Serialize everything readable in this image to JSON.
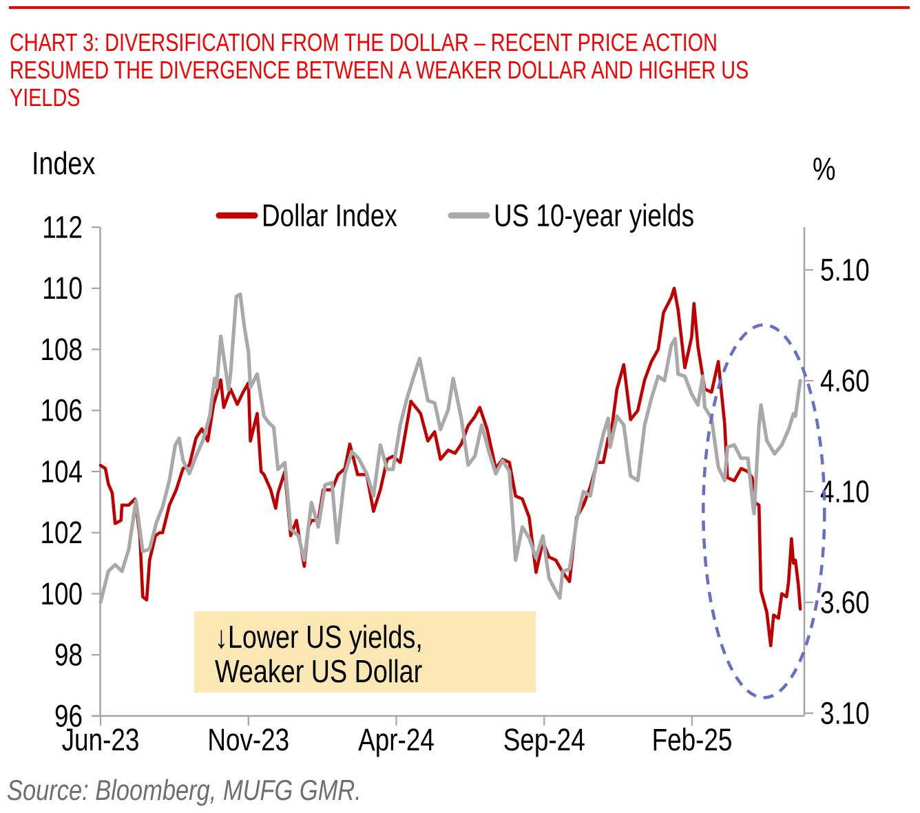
{
  "header": {
    "rule_color": "#F40000",
    "title_color": "#F40000",
    "title_lines": [
      "CHART 3: DIVERSIFICATION FROM THE DOLLAR – RECENT PRICE ACTION",
      "RESUMED THE DIVERGENCE BETWEEN A WEAKER DOLLAR AND HIGHER US",
      "YIELDS"
    ]
  },
  "chart": {
    "left_axis_title": "Index",
    "right_axis_title": "%",
    "legend": [
      {
        "label": "Dollar Index",
        "color": "#C00000"
      },
      {
        "label": "US 10-year yields",
        "color": "#A9A9A9"
      }
    ],
    "annotation_box": {
      "line1": "↓Lower US yields,",
      "line2": "Weaker US Dollar",
      "bg_color": "#FAE7B3"
    }
  },
  "source": {
    "text": "Source: Bloomberg, MUFG GMR."
  },
  "chart_data": {
    "type": "line",
    "title": "CHART 3: Diversification from the dollar – recent price action resumed the divergence between a weaker dollar and higher US yields",
    "grid": false,
    "legend_position": "top",
    "left_axis": {
      "label": "Index",
      "range": [
        96,
        112
      ],
      "ticks": [
        112,
        110,
        108,
        106,
        104,
        102,
        100,
        98,
        96
      ]
    },
    "right_axis": {
      "label": "%",
      "ticks": [
        5.1,
        4.6,
        4.1,
        3.6,
        3.1
      ]
    },
    "x_axis": {
      "tick_labels": [
        "Jun-23",
        "Nov-23",
        "Apr-24",
        "Sep-24",
        "Feb-25"
      ],
      "tick_month_offsets": [
        0,
        5,
        10,
        15,
        20
      ],
      "start_date": "2023-06-01",
      "end_date": "2025-05-21"
    },
    "series": [
      {
        "name": "Dollar Index",
        "axis": "left",
        "color": "#C00000",
        "stroke_width": 4.6,
        "points": [
          [
            "2023-06-01",
            104.2
          ],
          [
            "2023-06-06",
            104.1
          ],
          [
            "2023-06-09",
            103.6
          ],
          [
            "2023-06-13",
            103.3
          ],
          [
            "2023-06-16",
            102.3
          ],
          [
            "2023-06-22",
            102.4
          ],
          [
            "2023-06-23",
            102.9
          ],
          [
            "2023-06-30",
            102.9
          ],
          [
            "2023-07-06",
            103.1
          ],
          [
            "2023-07-11",
            101.9
          ],
          [
            "2023-07-14",
            99.9
          ],
          [
            "2023-07-18",
            99.8
          ],
          [
            "2023-07-21",
            101.1
          ],
          [
            "2023-07-27",
            101.9
          ],
          [
            "2023-08-01",
            102.0
          ],
          [
            "2023-08-04",
            102.0
          ],
          [
            "2023-08-11",
            102.9
          ],
          [
            "2023-08-18",
            103.4
          ],
          [
            "2023-08-25",
            104.1
          ],
          [
            "2023-09-01",
            104.2
          ],
          [
            "2023-09-08",
            105.1
          ],
          [
            "2023-09-14",
            105.4
          ],
          [
            "2023-09-20",
            105.0
          ],
          [
            "2023-09-26",
            106.2
          ],
          [
            "2023-10-03",
            107.0
          ],
          [
            "2023-10-06",
            106.1
          ],
          [
            "2023-10-13",
            106.7
          ],
          [
            "2023-10-20",
            106.2
          ],
          [
            "2023-10-26",
            106.6
          ],
          [
            "2023-11-01",
            106.9
          ],
          [
            "2023-11-03",
            105.0
          ],
          [
            "2023-11-10",
            105.9
          ],
          [
            "2023-11-14",
            104.0
          ],
          [
            "2023-11-17",
            103.9
          ],
          [
            "2023-11-24",
            103.4
          ],
          [
            "2023-11-29",
            102.8
          ],
          [
            "2023-12-01",
            103.3
          ],
          [
            "2023-12-08",
            104.0
          ],
          [
            "2023-12-14",
            101.9
          ],
          [
            "2023-12-20",
            102.4
          ],
          [
            "2023-12-28",
            100.9
          ],
          [
            "2024-01-02",
            102.2
          ],
          [
            "2024-01-05",
            102.4
          ],
          [
            "2024-01-12",
            102.4
          ],
          [
            "2024-01-17",
            103.4
          ],
          [
            "2024-01-26",
            103.4
          ],
          [
            "2024-02-02",
            103.9
          ],
          [
            "2024-02-09",
            104.1
          ],
          [
            "2024-02-14",
            104.9
          ],
          [
            "2024-02-22",
            103.9
          ],
          [
            "2024-03-01",
            103.9
          ],
          [
            "2024-03-08",
            102.7
          ],
          [
            "2024-03-15",
            103.4
          ],
          [
            "2024-03-22",
            104.4
          ],
          [
            "2024-03-28",
            104.5
          ],
          [
            "2024-04-05",
            104.3
          ],
          [
            "2024-04-10",
            105.2
          ],
          [
            "2024-04-16",
            106.3
          ],
          [
            "2024-04-26",
            105.9
          ],
          [
            "2024-05-03",
            105.0
          ],
          [
            "2024-05-10",
            105.3
          ],
          [
            "2024-05-16",
            104.4
          ],
          [
            "2024-05-24",
            104.7
          ],
          [
            "2024-05-31",
            104.6
          ],
          [
            "2024-06-07",
            104.9
          ],
          [
            "2024-06-14",
            105.5
          ],
          [
            "2024-06-21",
            105.8
          ],
          [
            "2024-06-26",
            106.1
          ],
          [
            "2024-07-03",
            105.4
          ],
          [
            "2024-07-12",
            104.1
          ],
          [
            "2024-07-19",
            104.4
          ],
          [
            "2024-07-26",
            104.3
          ],
          [
            "2024-08-02",
            103.2
          ],
          [
            "2024-08-09",
            103.1
          ],
          [
            "2024-08-16",
            102.5
          ],
          [
            "2024-08-23",
            100.7
          ],
          [
            "2024-08-30",
            101.7
          ],
          [
            "2024-09-06",
            101.2
          ],
          [
            "2024-09-13",
            101.1
          ],
          [
            "2024-09-20",
            100.7
          ],
          [
            "2024-09-27",
            100.4
          ],
          [
            "2024-10-04",
            102.5
          ],
          [
            "2024-10-11",
            102.9
          ],
          [
            "2024-10-18",
            103.5
          ],
          [
            "2024-10-25",
            104.3
          ],
          [
            "2024-11-01",
            104.3
          ],
          [
            "2024-11-06",
            105.1
          ],
          [
            "2024-11-08",
            105.0
          ],
          [
            "2024-11-15",
            106.7
          ],
          [
            "2024-11-22",
            107.5
          ],
          [
            "2024-11-29",
            105.7
          ],
          [
            "2024-12-06",
            106.0
          ],
          [
            "2024-12-13",
            107.0
          ],
          [
            "2024-12-20",
            107.6
          ],
          [
            "2024-12-27",
            108.0
          ],
          [
            "2025-01-02",
            109.2
          ],
          [
            "2025-01-10",
            109.7
          ],
          [
            "2025-01-13",
            110.0
          ],
          [
            "2025-01-17",
            109.3
          ],
          [
            "2025-01-24",
            107.4
          ],
          [
            "2025-01-31",
            108.4
          ],
          [
            "2025-02-03",
            109.5
          ],
          [
            "2025-02-07",
            108.1
          ],
          [
            "2025-02-14",
            106.7
          ],
          [
            "2025-02-21",
            106.6
          ],
          [
            "2025-02-28",
            107.6
          ],
          [
            "2025-03-04",
            105.6
          ],
          [
            "2025-03-07",
            103.8
          ],
          [
            "2025-03-14",
            103.7
          ],
          [
            "2025-03-21",
            104.1
          ],
          [
            "2025-03-28",
            104.0
          ],
          [
            "2025-04-02",
            103.8
          ],
          [
            "2025-04-04",
            103.0
          ],
          [
            "2025-04-09",
            102.9
          ],
          [
            "2025-04-11",
            100.1
          ],
          [
            "2025-04-17",
            99.4
          ],
          [
            "2025-04-21",
            98.3
          ],
          [
            "2025-04-24",
            99.3
          ],
          [
            "2025-04-29",
            99.2
          ],
          [
            "2025-05-02",
            100.0
          ],
          [
            "2025-05-07",
            99.9
          ],
          [
            "2025-05-09",
            100.4
          ],
          [
            "2025-05-12",
            101.8
          ],
          [
            "2025-05-14",
            101.0
          ],
          [
            "2025-05-16",
            101.1
          ],
          [
            "2025-05-19",
            100.3
          ],
          [
            "2025-05-21",
            99.5
          ]
        ]
      },
      {
        "name": "US 10-year yields",
        "axis": "right",
        "color": "#A9A9A9",
        "stroke_width": 5.2,
        "points": [
          [
            "2023-06-01",
            3.6
          ],
          [
            "2023-06-09",
            3.74
          ],
          [
            "2023-06-16",
            3.77
          ],
          [
            "2023-06-23",
            3.74
          ],
          [
            "2023-06-30",
            3.84
          ],
          [
            "2023-07-07",
            4.06
          ],
          [
            "2023-07-14",
            3.83
          ],
          [
            "2023-07-21",
            3.84
          ],
          [
            "2023-07-28",
            3.96
          ],
          [
            "2023-08-04",
            4.03
          ],
          [
            "2023-08-11",
            4.15
          ],
          [
            "2023-08-17",
            4.31
          ],
          [
            "2023-08-21",
            4.34
          ],
          [
            "2023-08-25",
            4.24
          ],
          [
            "2023-09-01",
            4.18
          ],
          [
            "2023-09-08",
            4.26
          ],
          [
            "2023-09-15",
            4.33
          ],
          [
            "2023-09-22",
            4.44
          ],
          [
            "2023-09-27",
            4.61
          ],
          [
            "2023-09-29",
            4.57
          ],
          [
            "2023-10-03",
            4.8
          ],
          [
            "2023-10-11",
            4.56
          ],
          [
            "2023-10-13",
            4.63
          ],
          [
            "2023-10-19",
            4.98
          ],
          [
            "2023-10-23",
            4.99
          ],
          [
            "2023-10-27",
            4.85
          ],
          [
            "2023-11-01",
            4.73
          ],
          [
            "2023-11-03",
            4.57
          ],
          [
            "2023-11-10",
            4.63
          ],
          [
            "2023-11-17",
            4.44
          ],
          [
            "2023-11-22",
            4.41
          ],
          [
            "2023-11-27",
            4.39
          ],
          [
            "2023-12-01",
            4.2
          ],
          [
            "2023-12-08",
            4.23
          ],
          [
            "2023-12-14",
            3.93
          ],
          [
            "2023-12-22",
            3.9
          ],
          [
            "2023-12-28",
            3.79
          ],
          [
            "2024-01-05",
            4.05
          ],
          [
            "2024-01-12",
            3.94
          ],
          [
            "2024-01-19",
            4.13
          ],
          [
            "2024-01-26",
            4.14
          ],
          [
            "2024-02-01",
            3.87
          ],
          [
            "2024-02-09",
            4.18
          ],
          [
            "2024-02-16",
            4.28
          ],
          [
            "2024-02-23",
            4.25
          ],
          [
            "2024-03-01",
            4.18
          ],
          [
            "2024-03-08",
            4.08
          ],
          [
            "2024-03-15",
            4.31
          ],
          [
            "2024-03-22",
            4.2
          ],
          [
            "2024-03-28",
            4.2
          ],
          [
            "2024-04-05",
            4.4
          ],
          [
            "2024-04-12",
            4.52
          ],
          [
            "2024-04-19",
            4.62
          ],
          [
            "2024-04-25",
            4.7
          ],
          [
            "2024-05-03",
            4.51
          ],
          [
            "2024-05-10",
            4.5
          ],
          [
            "2024-05-16",
            4.38
          ],
          [
            "2024-05-24",
            4.47
          ],
          [
            "2024-05-29",
            4.61
          ],
          [
            "2024-06-07",
            4.43
          ],
          [
            "2024-06-14",
            4.22
          ],
          [
            "2024-06-21",
            4.26
          ],
          [
            "2024-06-28",
            4.4
          ],
          [
            "2024-07-05",
            4.28
          ],
          [
            "2024-07-12",
            4.18
          ],
          [
            "2024-07-19",
            4.24
          ],
          [
            "2024-07-26",
            4.19
          ],
          [
            "2024-08-02",
            3.79
          ],
          [
            "2024-08-09",
            3.94
          ],
          [
            "2024-08-16",
            3.89
          ],
          [
            "2024-08-23",
            3.8
          ],
          [
            "2024-08-30",
            3.9
          ],
          [
            "2024-09-06",
            3.71
          ],
          [
            "2024-09-13",
            3.65
          ],
          [
            "2024-09-17",
            3.62
          ],
          [
            "2024-09-20",
            3.74
          ],
          [
            "2024-09-27",
            3.75
          ],
          [
            "2024-10-04",
            3.97
          ],
          [
            "2024-10-11",
            4.1
          ],
          [
            "2024-10-18",
            4.08
          ],
          [
            "2024-10-25",
            4.24
          ],
          [
            "2024-11-01",
            4.36
          ],
          [
            "2024-11-06",
            4.43
          ],
          [
            "2024-11-08",
            4.3
          ],
          [
            "2024-11-15",
            4.44
          ],
          [
            "2024-11-22",
            4.4
          ],
          [
            "2024-11-29",
            4.17
          ],
          [
            "2024-12-06",
            4.15
          ],
          [
            "2024-12-13",
            4.4
          ],
          [
            "2024-12-20",
            4.52
          ],
          [
            "2024-12-27",
            4.62
          ],
          [
            "2025-01-03",
            4.6
          ],
          [
            "2025-01-10",
            4.76
          ],
          [
            "2025-01-14",
            4.79
          ],
          [
            "2025-01-17",
            4.63
          ],
          [
            "2025-01-24",
            4.62
          ],
          [
            "2025-01-31",
            4.54
          ],
          [
            "2025-02-07",
            4.49
          ],
          [
            "2025-02-12",
            4.62
          ],
          [
            "2025-02-14",
            4.48
          ],
          [
            "2025-02-21",
            4.43
          ],
          [
            "2025-02-28",
            4.21
          ],
          [
            "2025-03-04",
            4.15
          ],
          [
            "2025-03-07",
            4.3
          ],
          [
            "2025-03-14",
            4.31
          ],
          [
            "2025-03-21",
            4.25
          ],
          [
            "2025-03-28",
            4.25
          ],
          [
            "2025-04-03",
            4.03
          ],
          [
            "2025-04-04",
            4.0
          ],
          [
            "2025-04-09",
            4.4
          ],
          [
            "2025-04-11",
            4.49
          ],
          [
            "2025-04-17",
            4.33
          ],
          [
            "2025-04-25",
            4.27
          ],
          [
            "2025-05-02",
            4.31
          ],
          [
            "2025-05-09",
            4.38
          ],
          [
            "2025-05-14",
            4.45
          ],
          [
            "2025-05-16",
            4.44
          ],
          [
            "2025-05-21",
            4.6
          ]
        ]
      }
    ],
    "annotations": [
      {
        "type": "text_box",
        "lines": [
          "↓Lower US yields,",
          "Weaker US Dollar"
        ],
        "bg_color": "#FAE7B3"
      },
      {
        "type": "ellipse",
        "purpose": "highlight recent divergence",
        "center_date": "2025-04-14",
        "center_value_left_axis": 102.7,
        "radius_months": 2.05,
        "radius_left_axis_units": 6.1,
        "color": "#6470C0",
        "dashed": true
      }
    ]
  }
}
